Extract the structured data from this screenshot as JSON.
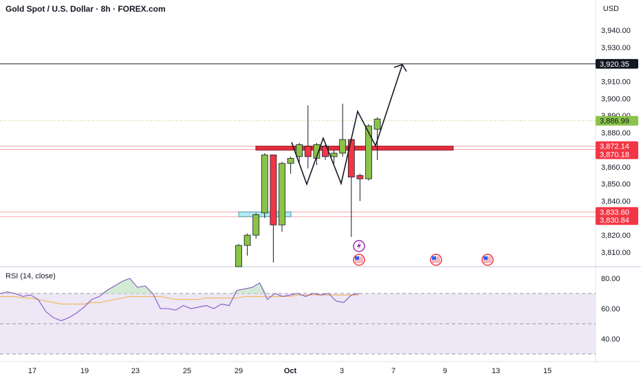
{
  "header": {
    "title": "Gold Spot / U.S. Dollar · 8h · FOREX.com",
    "currency": "USD"
  },
  "rsi": {
    "label": "RSI (14, close)",
    "ticks": [
      "80.00",
      "60.00",
      "40.00"
    ]
  },
  "colors": {
    "up": "#8bc34a",
    "down": "#f23645",
    "price_tag": "#8bc34a",
    "level_tag": "#f23645",
    "target_tag": "#131722",
    "rsi_line": "#7e57c2",
    "rsi_ma": "#f5b041",
    "rsi_band": "#ede7f6"
  },
  "chart_data": {
    "type": "candlestick",
    "timeframe": "8h",
    "y_ticks": [
      3810,
      3820,
      3830,
      3840,
      3850,
      3860,
      3870,
      3880,
      3890,
      3900,
      3910,
      3920,
      3930,
      3940
    ],
    "y_tick_labels": [
      "3,810.00",
      "3,820.00",
      "3,830.00",
      "3,840.00",
      "3,850.00",
      "3,860.00",
      "3,870.00",
      "3,880.00",
      "3,890.00",
      "3,900.00",
      "3,910.00",
      "3,920.00",
      "3,930.00",
      "3,940.00"
    ],
    "x_tick_labels": [
      "17",
      "19",
      "23",
      "25",
      "29",
      "Oct",
      "3",
      "7",
      "9",
      "13",
      "15"
    ],
    "candles": [
      {
        "o": 3800.0,
        "h": 3815.0,
        "l": 3800.0,
        "c": 3814.0
      },
      {
        "o": 3814.0,
        "h": 3821.0,
        "l": 3808.0,
        "c": 3820.0
      },
      {
        "o": 3820.0,
        "h": 3833.0,
        "l": 3818.0,
        "c": 3832.0
      },
      {
        "o": 3833.0,
        "h": 3868.0,
        "l": 3830.0,
        "c": 3867.0
      },
      {
        "o": 3867.0,
        "h": 3867.0,
        "l": 3804.0,
        "c": 3826.0
      },
      {
        "o": 3826.0,
        "h": 3863.0,
        "l": 3822.0,
        "c": 3862.0
      },
      {
        "o": 3862.0,
        "h": 3866.0,
        "l": 3856.0,
        "c": 3865.0
      },
      {
        "o": 3866.0,
        "h": 3874.0,
        "l": 3862.0,
        "c": 3873.0
      },
      {
        "o": 3872.0,
        "h": 3896.0,
        "l": 3859.0,
        "c": 3866.0
      },
      {
        "o": 3865.0,
        "h": 3874.0,
        "l": 3861.0,
        "c": 3873.0
      },
      {
        "o": 3872.0,
        "h": 3873.0,
        "l": 3864.0,
        "c": 3866.0
      },
      {
        "o": 3866.0,
        "h": 3870.0,
        "l": 3862.0,
        "c": 3868.0
      },
      {
        "o": 3868.0,
        "h": 3897.0,
        "l": 3866.0,
        "c": 3876.0
      },
      {
        "o": 3876.0,
        "h": 3877.0,
        "l": 3819.0,
        "c": 3854.0
      },
      {
        "o": 3855.0,
        "h": 3856.0,
        "l": 3840.0,
        "c": 3853.0
      },
      {
        "o": 3853.0,
        "h": 3885.0,
        "l": 3852.0,
        "c": 3884.0
      },
      {
        "o": 3882.0,
        "h": 3889.0,
        "l": 3864.0,
        "c": 3888.0
      }
    ],
    "current_price": 3886.99,
    "current_price_label": "3,886.99",
    "levels": [
      {
        "value": 3920.35,
        "label": "3,920.35"
      },
      {
        "value": 3872.14,
        "label": "3,872.14"
      },
      {
        "value": 3870.18,
        "label": "3,870.18"
      },
      {
        "value": 3833.6,
        "label": "3,833.60"
      },
      {
        "value": 3830.84,
        "label": "3,830.84"
      }
    ],
    "rsi_values": [
      70,
      71,
      70,
      68,
      69,
      66,
      58,
      54,
      52,
      54,
      57,
      61,
      66,
      68,
      72,
      75,
      78,
      80,
      74,
      75,
      70,
      60,
      60,
      59,
      62,
      60,
      61,
      62,
      60,
      63,
      62,
      72,
      73,
      74,
      77,
      66,
      70,
      68,
      69,
      70,
      68,
      70,
      69,
      70,
      65,
      64,
      69,
      70
    ],
    "rsi_ma_values": [
      68,
      68,
      68,
      67,
      67,
      66,
      65,
      64,
      63,
      63,
      63,
      63,
      64,
      64,
      65,
      66,
      67,
      68,
      68,
      68,
      68,
      68,
      67,
      66,
      66,
      66,
      66,
      67,
      67,
      67,
      67,
      67,
      68,
      68,
      68,
      68,
      68,
      68,
      68,
      69,
      69,
      69,
      69,
      69,
      69,
      69,
      69,
      69
    ],
    "rsi_levels": [
      70,
      50,
      30
    ],
    "rsi_tick_values": [
      80,
      60,
      40
    ]
  }
}
